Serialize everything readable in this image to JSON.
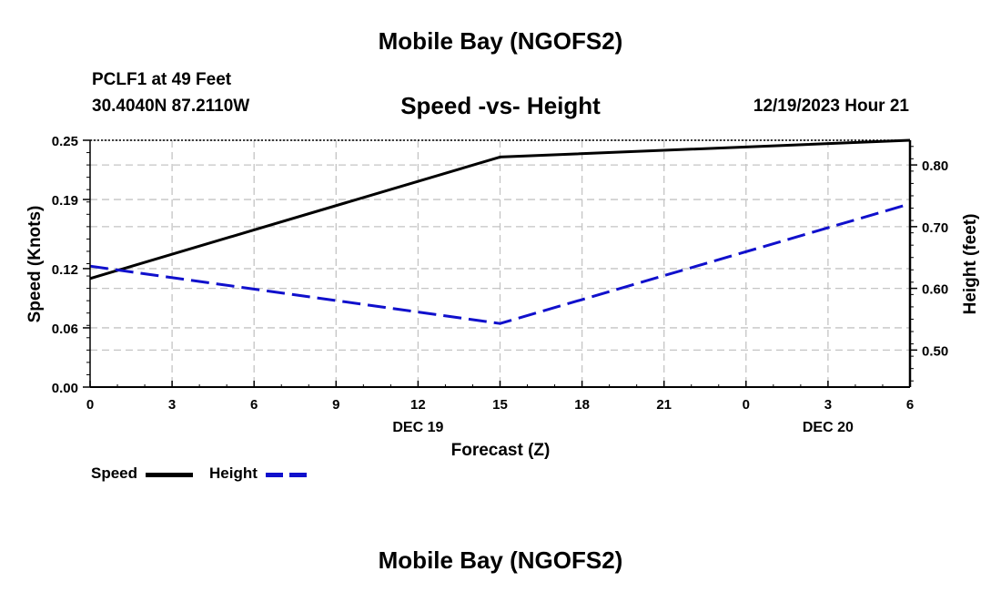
{
  "header": {
    "title": "Mobile Bay (NGOFS2)",
    "station": "PCLF1 at 49 Feet",
    "coords": "30.4040N  87.2110W",
    "timestamp": "12/19/2023 Hour 21"
  },
  "footer": {
    "title": "Mobile Bay (NGOFS2)"
  },
  "chart_data": {
    "type": "line",
    "title": "Speed -vs- Height",
    "xlabel": "Forecast (Z)",
    "ylabel": "Speed (Knots)",
    "y2label": "Height (feet)",
    "x": [
      0,
      3,
      6,
      9,
      12,
      15,
      18,
      21,
      24,
      27,
      30
    ],
    "x_tick_labels": [
      "0",
      "3",
      "6",
      "9",
      "12",
      "15",
      "18",
      "21",
      "0",
      "3",
      "6"
    ],
    "x_date_labels": [
      {
        "x": 12,
        "label": "DEC 19"
      },
      {
        "x": 27,
        "label": "DEC 20"
      }
    ],
    "xlim": [
      0,
      30
    ],
    "ylim": [
      0,
      0.25
    ],
    "y_ticks": [
      0.0,
      0.06,
      0.12,
      0.19,
      0.25
    ],
    "y_tick_labels": [
      "0.00",
      "0.06",
      "0.12",
      "0.19",
      "0.25"
    ],
    "y2lim": [
      0.44,
      0.84
    ],
    "y2_ticks": [
      0.5,
      0.6,
      0.7,
      0.8
    ],
    "y2_tick_labels": [
      "0.50",
      "0.60",
      "0.70",
      "0.80"
    ],
    "grid": true,
    "legend_position": "bottom-left",
    "series": [
      {
        "name": "Speed",
        "axis": "left",
        "color": "#000000",
        "dash": "solid",
        "x": [
          0,
          15,
          30
        ],
        "values": [
          0.11,
          0.233,
          0.25
        ]
      },
      {
        "name": "Height",
        "axis": "right",
        "color": "#1010cc",
        "dash": "dashed",
        "x": [
          0,
          15,
          30
        ],
        "values": [
          0.636,
          0.543,
          0.737
        ]
      }
    ]
  }
}
